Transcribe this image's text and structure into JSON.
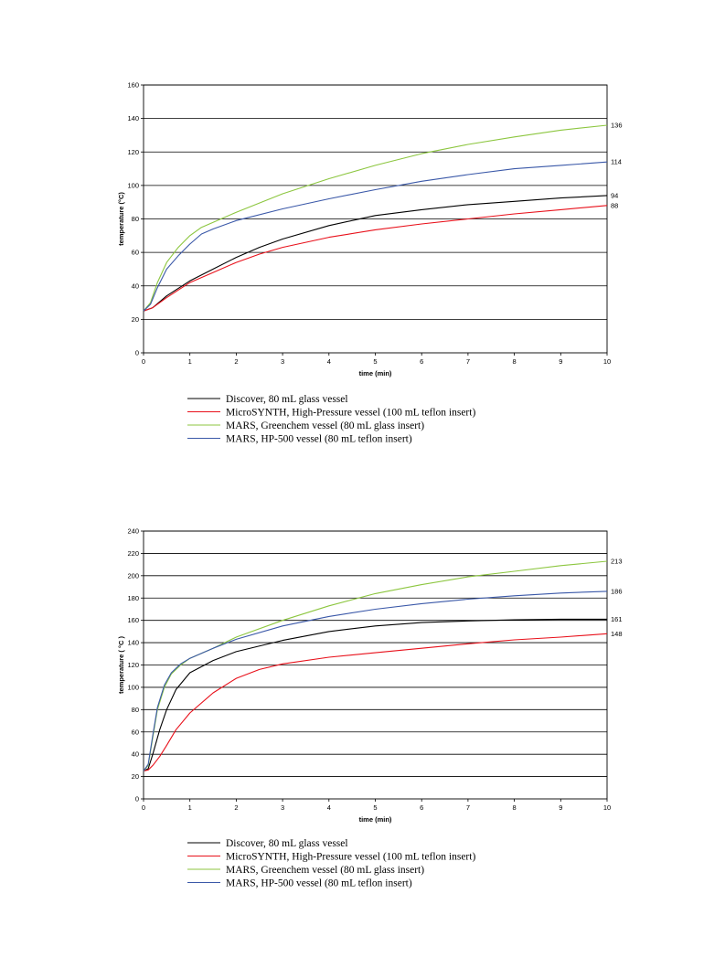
{
  "chart_data": [
    {
      "type": "line",
      "xlabel": "time (min)",
      "ylabel": "temperature (°C)",
      "xlim": [
        0,
        10
      ],
      "ylim": [
        0,
        160
      ],
      "xticks": [
        0,
        1,
        2,
        3,
        4,
        5,
        6,
        7,
        8,
        9,
        10
      ],
      "yticks": [
        0,
        20,
        40,
        60,
        80,
        100,
        120,
        140,
        160
      ],
      "grid": "horizontal",
      "legend_position": "below",
      "series": [
        {
          "name": "Discover, 80 mL glass vessel",
          "color": "#000000",
          "end_label": "94",
          "x": [
            0,
            0.2,
            0.5,
            1,
            1.5,
            2,
            2.5,
            3,
            4,
            5,
            6,
            7,
            8,
            9,
            10
          ],
          "y": [
            25,
            27,
            34,
            43,
            50,
            57,
            63,
            68,
            76,
            82,
            85.5,
            88.5,
            90.5,
            92.5,
            94
          ]
        },
        {
          "name": "MicroSYNTH, High-Pressure vessel (100 mL teflon insert)",
          "color": "#e8101a",
          "end_label": "88",
          "x": [
            0,
            0.2,
            0.5,
            1,
            1.5,
            2,
            2.5,
            3,
            4,
            5,
            6,
            7,
            8,
            9,
            10
          ],
          "y": [
            25,
            27,
            33,
            42,
            48,
            54,
            59,
            63,
            69,
            73.5,
            77,
            80,
            83,
            85.5,
            88
          ]
        },
        {
          "name": "MARS, Greenchem vessel (80 mL glass insert)",
          "color": "#8cc63f",
          "end_label": "136",
          "x": [
            0,
            0.15,
            0.3,
            0.5,
            0.75,
            1,
            1.25,
            1.5,
            2,
            3,
            4,
            5,
            6,
            7,
            8,
            9,
            10
          ],
          "y": [
            25,
            30,
            42,
            54,
            63,
            70,
            75,
            78,
            84,
            95,
            104,
            112,
            119,
            124.5,
            129,
            133,
            136
          ]
        },
        {
          "name": "MARS, HP-500 vessel (80 mL teflon insert)",
          "color": "#3a58a8",
          "end_label": "114",
          "x": [
            0,
            0.15,
            0.3,
            0.5,
            0.75,
            1,
            1.25,
            1.5,
            2,
            3,
            4,
            5,
            6,
            7,
            8,
            9,
            10
          ],
          "y": [
            25,
            29,
            39,
            50,
            58,
            65,
            71,
            74,
            79,
            86,
            92,
            97.5,
            102.5,
            106.5,
            110,
            112,
            114
          ]
        }
      ]
    },
    {
      "type": "line",
      "xlabel": "time (min)",
      "ylabel": "temperature ( °C )",
      "xlim": [
        0,
        10
      ],
      "ylim": [
        0,
        240
      ],
      "xticks": [
        0,
        1,
        2,
        3,
        4,
        5,
        6,
        7,
        8,
        9,
        10
      ],
      "yticks": [
        0,
        20,
        40,
        60,
        80,
        100,
        120,
        140,
        160,
        180,
        200,
        220,
        240
      ],
      "grid": "horizontal",
      "legend_position": "below",
      "series": [
        {
          "name": "Discover, 80 mL glass vessel",
          "color": "#000000",
          "end_label": "161",
          "x": [
            0,
            0.1,
            0.2,
            0.35,
            0.5,
            0.7,
            1,
            1.5,
            2,
            3,
            4,
            5,
            6,
            7,
            8,
            9,
            10
          ],
          "y": [
            25,
            27,
            40,
            62,
            80,
            98,
            113,
            124,
            132,
            142,
            150,
            155,
            158,
            159.5,
            160.5,
            161,
            161
          ]
        },
        {
          "name": "MicroSYNTH, High-Pressure vessel (100 mL teflon insert)",
          "color": "#e8101a",
          "end_label": "148",
          "x": [
            0,
            0.1,
            0.2,
            0.35,
            0.5,
            0.7,
            1,
            1.5,
            2,
            2.5,
            3,
            4,
            5,
            6,
            7,
            8,
            9,
            10
          ],
          "y": [
            25,
            26,
            30,
            38,
            48,
            62,
            77,
            95,
            108,
            116,
            121,
            127,
            131,
            135,
            139,
            142.5,
            145,
            148
          ]
        },
        {
          "name": "MARS, Greenchem vessel (80 mL glass insert)",
          "color": "#8cc63f",
          "end_label": "213",
          "x": [
            0,
            0.1,
            0.2,
            0.3,
            0.45,
            0.6,
            0.8,
            1,
            1.5,
            2,
            3,
            4,
            5,
            6,
            7,
            8,
            9,
            10
          ],
          "y": [
            25,
            30,
            55,
            80,
            100,
            112,
            120,
            126,
            135,
            145,
            160,
            173,
            184,
            192,
            199,
            204,
            209,
            213
          ]
        },
        {
          "name": "MARS, HP-500 vessel (80 mL teflon insert)",
          "color": "#3a58a8",
          "end_label": "186",
          "x": [
            0,
            0.1,
            0.2,
            0.3,
            0.45,
            0.6,
            0.8,
            1,
            1.5,
            2,
            3,
            4,
            5,
            6,
            7,
            8,
            9,
            10
          ],
          "y": [
            25,
            31,
            57,
            82,
            102,
            113,
            121,
            126,
            135,
            143,
            155,
            163.5,
            170,
            175,
            179,
            182,
            184.5,
            186
          ]
        }
      ]
    }
  ]
}
